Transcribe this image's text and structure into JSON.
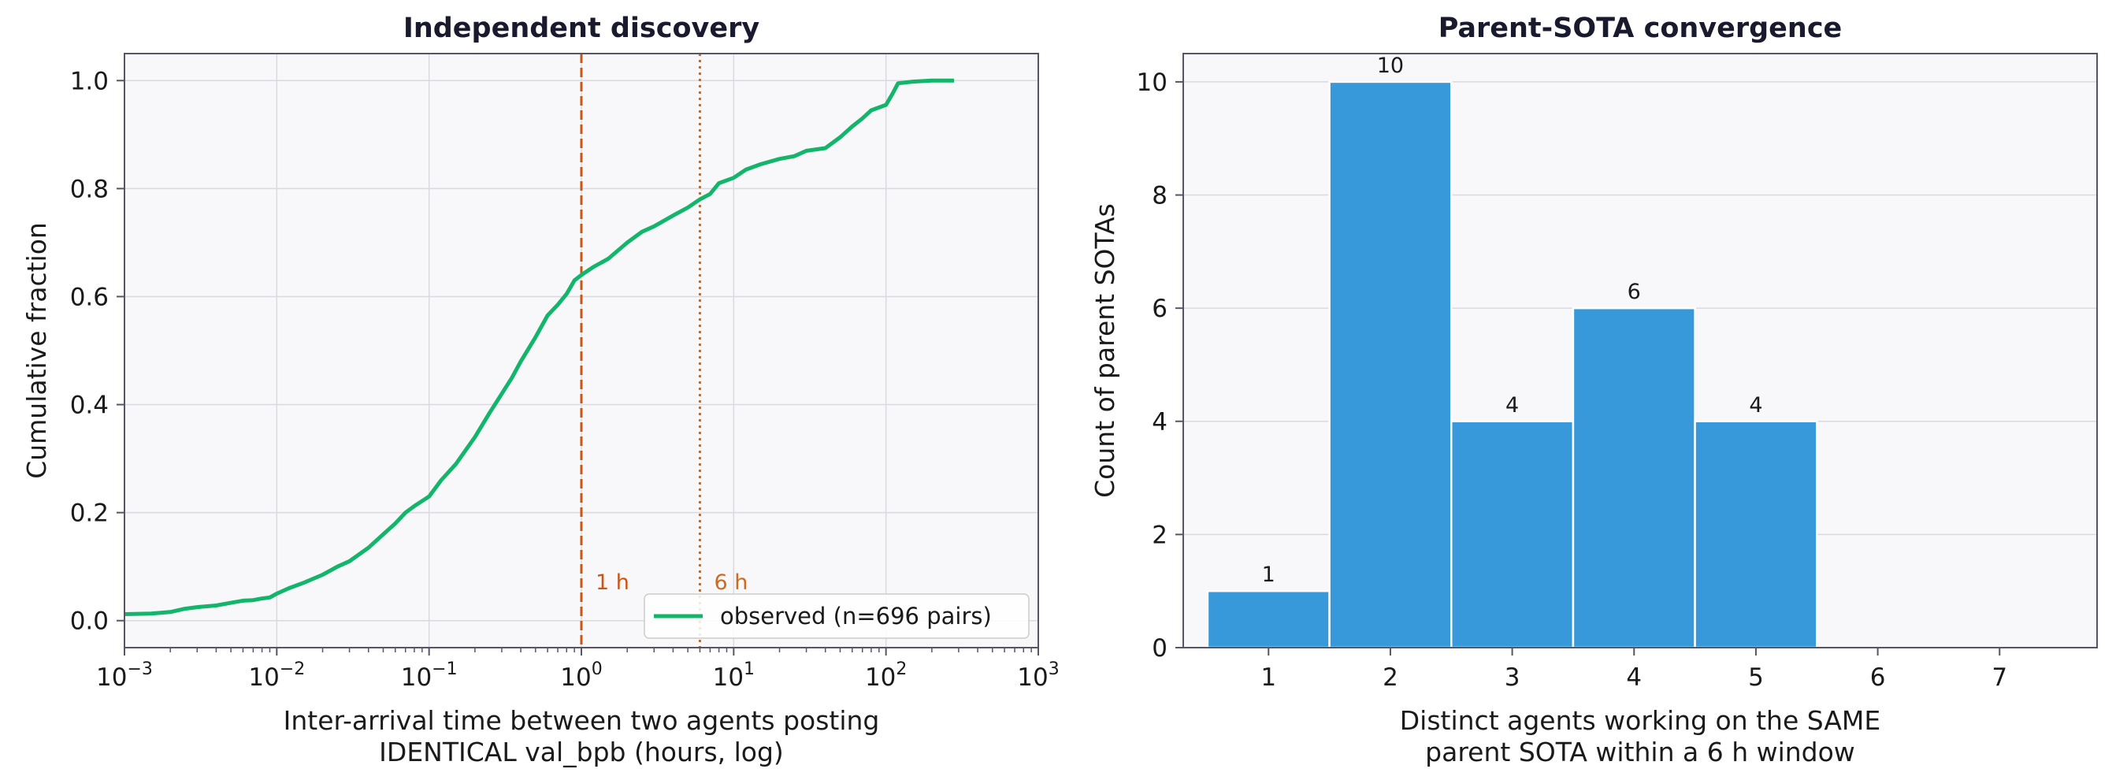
{
  "colors": {
    "panel_bg": "#f8f8fb",
    "grid": "#d9d9df",
    "frame": "#555566",
    "cdf_line": "#13b56b",
    "vline_1h": "#cc5511",
    "vline_6h": "#cc6a22",
    "bar": "#3799da",
    "bar_edge": "#ffffff"
  },
  "chart_data": [
    {
      "type": "line",
      "title": "Independent discovery",
      "xlabel_lines": [
        "Inter-arrival time between two agents posting",
        "IDENTICAL val_bpb  (hours, log)"
      ],
      "ylabel": "Cumulative fraction",
      "xscale": "log",
      "xlim": [
        0.001,
        1000
      ],
      "ylim": [
        -0.05,
        1.05
      ],
      "x_ticks": [
        {
          "base": "10",
          "exp": "−3",
          "value": 0.001
        },
        {
          "base": "10",
          "exp": "−2",
          "value": 0.01
        },
        {
          "base": "10",
          "exp": "−1",
          "value": 0.1
        },
        {
          "base": "10",
          "exp": "0",
          "value": 1
        },
        {
          "base": "10",
          "exp": "1",
          "value": 10
        },
        {
          "base": "10",
          "exp": "2",
          "value": 100
        },
        {
          "base": "10",
          "exp": "3",
          "value": 1000
        }
      ],
      "y_ticks": [
        {
          "label": "0.0",
          "value": 0.0
        },
        {
          "label": "0.2",
          "value": 0.2
        },
        {
          "label": "0.4",
          "value": 0.4
        },
        {
          "label": "0.6",
          "value": 0.6
        },
        {
          "label": "0.8",
          "value": 0.8
        },
        {
          "label": "1.0",
          "value": 1.0
        }
      ],
      "grid": true,
      "legend": {
        "placement": "lower-right",
        "label": "observed  (n=696 pairs)"
      },
      "vlines": [
        {
          "x": 1,
          "label": "1 h",
          "style": "dashed"
        },
        {
          "x": 6,
          "label": "6 h",
          "style": "dotted"
        }
      ],
      "series": [
        {
          "name": "observed  (n=696 pairs)",
          "x": [
            0.001,
            0.0015,
            0.002,
            0.0025,
            0.003,
            0.004,
            0.005,
            0.006,
            0.007,
            0.008,
            0.009,
            0.01,
            0.012,
            0.015,
            0.02,
            0.025,
            0.03,
            0.04,
            0.05,
            0.06,
            0.07,
            0.08,
            0.1,
            0.12,
            0.15,
            0.2,
            0.25,
            0.3,
            0.35,
            0.4,
            0.5,
            0.6,
            0.7,
            0.8,
            0.9,
            1.0,
            1.2,
            1.5,
            2,
            2.5,
            3,
            4,
            5,
            6,
            7,
            8,
            10,
            12,
            15,
            20,
            25,
            30,
            40,
            50,
            60,
            70,
            80,
            100,
            110,
            120,
            150,
            200,
            280
          ],
          "y": [
            0.012,
            0.013,
            0.016,
            0.022,
            0.025,
            0.028,
            0.033,
            0.037,
            0.038,
            0.041,
            0.043,
            0.05,
            0.06,
            0.07,
            0.085,
            0.1,
            0.11,
            0.135,
            0.16,
            0.18,
            0.2,
            0.212,
            0.23,
            0.26,
            0.29,
            0.34,
            0.385,
            0.42,
            0.45,
            0.48,
            0.525,
            0.565,
            0.585,
            0.605,
            0.63,
            0.64,
            0.655,
            0.67,
            0.7,
            0.72,
            0.73,
            0.75,
            0.765,
            0.78,
            0.79,
            0.81,
            0.82,
            0.835,
            0.845,
            0.855,
            0.86,
            0.87,
            0.875,
            0.895,
            0.915,
            0.93,
            0.945,
            0.955,
            0.975,
            0.995,
            0.998,
            1.0,
            1.0
          ]
        }
      ]
    },
    {
      "type": "bar",
      "title": "Parent-SOTA convergence",
      "xlabel_lines": [
        "Distinct agents working on the SAME",
        "parent SOTA within a 6 h window"
      ],
      "ylabel": "Count of parent SOTAs",
      "categories": [
        1,
        2,
        3,
        4,
        5,
        6,
        7
      ],
      "values": [
        1,
        10,
        4,
        6,
        4,
        0,
        0
      ],
      "data_labels": [
        "1",
        "10",
        "4",
        "6",
        "4",
        "",
        ""
      ],
      "x_tick_labels": [
        "1",
        "2",
        "3",
        "4",
        "5",
        "6",
        "7"
      ],
      "xlim": [
        0.3,
        7.8
      ],
      "ylim": [
        0,
        10.5
      ],
      "y_ticks": [
        {
          "label": "0",
          "value": 0
        },
        {
          "label": "2",
          "value": 2
        },
        {
          "label": "4",
          "value": 4
        },
        {
          "label": "6",
          "value": 6
        },
        {
          "label": "8",
          "value": 8
        },
        {
          "label": "10",
          "value": 10
        }
      ],
      "grid": true
    }
  ]
}
